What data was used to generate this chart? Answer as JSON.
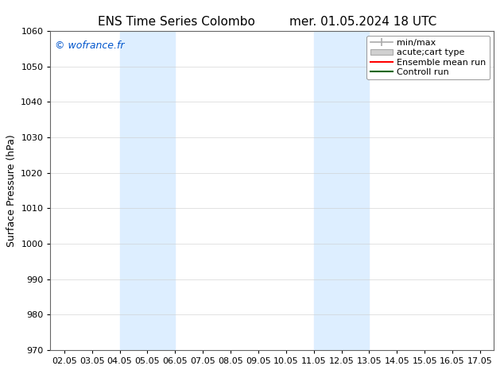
{
  "title_left": "ENS Time Series Colombo",
  "title_right": "mer. 01.05.2024 18 UTC",
  "ylabel": "Surface Pressure (hPa)",
  "ylim": [
    970,
    1060
  ],
  "yticks": [
    970,
    980,
    990,
    1000,
    1010,
    1020,
    1030,
    1040,
    1050,
    1060
  ],
  "xlim": [
    0,
    15
  ],
  "xtick_labels": [
    "02.05",
    "03.05",
    "04.05",
    "05.05",
    "06.05",
    "07.05",
    "08.05",
    "09.05",
    "10.05",
    "11.05",
    "12.05",
    "13.05",
    "14.05",
    "15.05",
    "16.05",
    "17.05"
  ],
  "xtick_positions": [
    0,
    1,
    2,
    3,
    4,
    5,
    6,
    7,
    8,
    9,
    10,
    11,
    12,
    13,
    14,
    15
  ],
  "shaded_bands": [
    {
      "xmin": 2,
      "xmax": 4,
      "color": "#ddeeff"
    },
    {
      "xmin": 9,
      "xmax": 11,
      "color": "#ddeeff"
    }
  ],
  "watermark_text": "© wofrance.fr",
  "watermark_color": "#0055cc",
  "background_color": "#ffffff",
  "plot_bg_color": "#ffffff",
  "legend_entries": [
    {
      "label": "min/max",
      "color": "#aaaaaa",
      "type": "errorbar"
    },
    {
      "label": "acute;cart type",
      "color": "#cccccc",
      "type": "fill"
    },
    {
      "label": "Ensemble mean run",
      "color": "#ff0000",
      "type": "line"
    },
    {
      "label": "Controll run",
      "color": "#008000",
      "type": "line"
    }
  ],
  "title_fontsize": 11,
  "tick_fontsize": 8,
  "ylabel_fontsize": 9,
  "legend_fontsize": 8,
  "watermark_fontsize": 9
}
